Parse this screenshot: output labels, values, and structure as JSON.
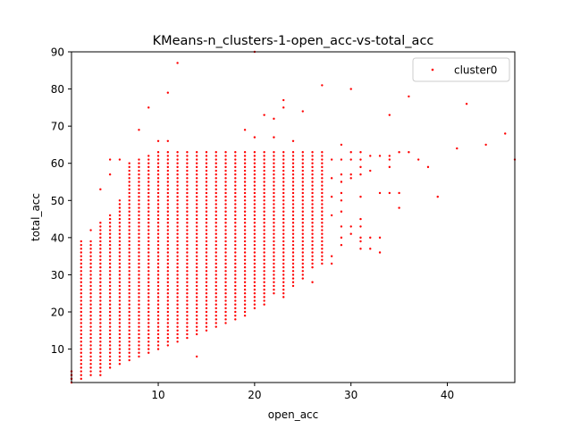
{
  "chart_data": {
    "type": "scatter",
    "title": "KMeans-n_clusters-1-open_acc-vs-total_acc",
    "xlabel": "open_acc",
    "ylabel": "total_acc",
    "xlim": [
      1,
      47
    ],
    "ylim": [
      1,
      90
    ],
    "xticks": [
      10,
      20,
      30,
      40
    ],
    "yticks": [
      10,
      20,
      30,
      40,
      50,
      60,
      70,
      80,
      90
    ],
    "grid": false,
    "legend_position": "top-right",
    "marker_color": "#ff0000",
    "series": [
      {
        "name": "cluster0",
        "color": "#ff0000",
        "column_ranges": [
          {
            "x": 1,
            "ymin": 1,
            "ymax": 4
          },
          {
            "x": 2,
            "ymin": 2,
            "ymax": 39
          },
          {
            "x": 3,
            "ymin": 3,
            "ymax": 39
          },
          {
            "x": 4,
            "ymin": 3,
            "ymax": 44
          },
          {
            "x": 5,
            "ymin": 5,
            "ymax": 46
          },
          {
            "x": 6,
            "ymin": 6,
            "ymax": 50
          },
          {
            "x": 7,
            "ymin": 7,
            "ymax": 60
          },
          {
            "x": 8,
            "ymin": 8,
            "ymax": 61
          },
          {
            "x": 9,
            "ymin": 9,
            "ymax": 62
          },
          {
            "x": 10,
            "ymin": 10,
            "ymax": 63
          },
          {
            "x": 11,
            "ymin": 11,
            "ymax": 63
          },
          {
            "x": 12,
            "ymin": 12,
            "ymax": 63
          },
          {
            "x": 13,
            "ymin": 13,
            "ymax": 63
          },
          {
            "x": 14,
            "ymin": 14,
            "ymax": 63
          },
          {
            "x": 15,
            "ymin": 15,
            "ymax": 63
          },
          {
            "x": 16,
            "ymin": 16,
            "ymax": 63
          },
          {
            "x": 17,
            "ymin": 17,
            "ymax": 63
          },
          {
            "x": 18,
            "ymin": 18,
            "ymax": 63
          },
          {
            "x": 19,
            "ymin": 19,
            "ymax": 63
          },
          {
            "x": 20,
            "ymin": 21,
            "ymax": 63
          },
          {
            "x": 21,
            "ymin": 22,
            "ymax": 63
          },
          {
            "x": 22,
            "ymin": 25,
            "ymax": 63
          },
          {
            "x": 23,
            "ymin": 25,
            "ymax": 63
          },
          {
            "x": 24,
            "ymin": 27,
            "ymax": 63
          },
          {
            "x": 25,
            "ymin": 30,
            "ymax": 63
          },
          {
            "x": 26,
            "ymin": 32,
            "ymax": 63
          },
          {
            "x": 27,
            "ymin": 33,
            "ymax": 63
          }
        ],
        "sparse_points": [
          [
            1,
            4
          ],
          [
            1,
            3
          ],
          [
            1,
            2
          ],
          [
            3,
            42
          ],
          [
            4,
            53
          ],
          [
            5,
            57
          ],
          [
            5,
            61
          ],
          [
            6,
            61
          ],
          [
            8,
            69
          ],
          [
            9,
            75
          ],
          [
            10,
            66
          ],
          [
            11,
            79
          ],
          [
            11,
            66
          ],
          [
            12,
            87
          ],
          [
            14,
            8
          ],
          [
            19,
            69
          ],
          [
            20,
            67
          ],
          [
            21,
            73
          ],
          [
            22,
            72
          ],
          [
            22,
            67
          ],
          [
            23,
            77
          ],
          [
            23,
            75
          ],
          [
            23,
            24
          ],
          [
            24,
            66
          ],
          [
            25,
            74
          ],
          [
            25,
            29
          ],
          [
            26,
            28
          ],
          [
            27,
            81
          ],
          [
            28,
            61
          ],
          [
            28,
            56
          ],
          [
            28,
            51
          ],
          [
            28,
            46
          ],
          [
            28,
            35
          ],
          [
            28,
            33
          ],
          [
            29,
            65
          ],
          [
            29,
            61
          ],
          [
            29,
            57
          ],
          [
            29,
            55
          ],
          [
            29,
            52
          ],
          [
            29,
            50
          ],
          [
            29,
            47
          ],
          [
            29,
            43
          ],
          [
            29,
            40
          ],
          [
            29,
            38
          ],
          [
            30,
            80
          ],
          [
            30,
            63
          ],
          [
            30,
            61
          ],
          [
            30,
            57
          ],
          [
            30,
            56
          ],
          [
            30,
            43
          ],
          [
            30,
            41
          ],
          [
            31,
            63
          ],
          [
            31,
            61
          ],
          [
            31,
            59
          ],
          [
            31,
            57
          ],
          [
            31,
            51
          ],
          [
            31,
            45
          ],
          [
            31,
            43
          ],
          [
            31,
            40
          ],
          [
            31,
            39
          ],
          [
            31,
            37
          ],
          [
            32,
            62
          ],
          [
            32,
            58
          ],
          [
            32,
            40
          ],
          [
            32,
            37
          ],
          [
            33,
            62
          ],
          [
            33,
            52
          ],
          [
            33,
            40
          ],
          [
            33,
            36
          ],
          [
            34,
            73
          ],
          [
            34,
            62
          ],
          [
            34,
            61
          ],
          [
            34,
            59
          ],
          [
            34,
            52
          ],
          [
            35,
            63
          ],
          [
            35,
            52
          ],
          [
            35,
            48
          ],
          [
            36,
            78
          ],
          [
            36,
            63
          ],
          [
            37,
            61
          ],
          [
            38,
            59
          ],
          [
            39,
            51
          ],
          [
            41,
            64
          ],
          [
            42,
            76
          ],
          [
            44,
            65
          ],
          [
            46,
            68
          ],
          [
            47,
            61
          ],
          [
            20,
            90
          ]
        ]
      }
    ]
  }
}
